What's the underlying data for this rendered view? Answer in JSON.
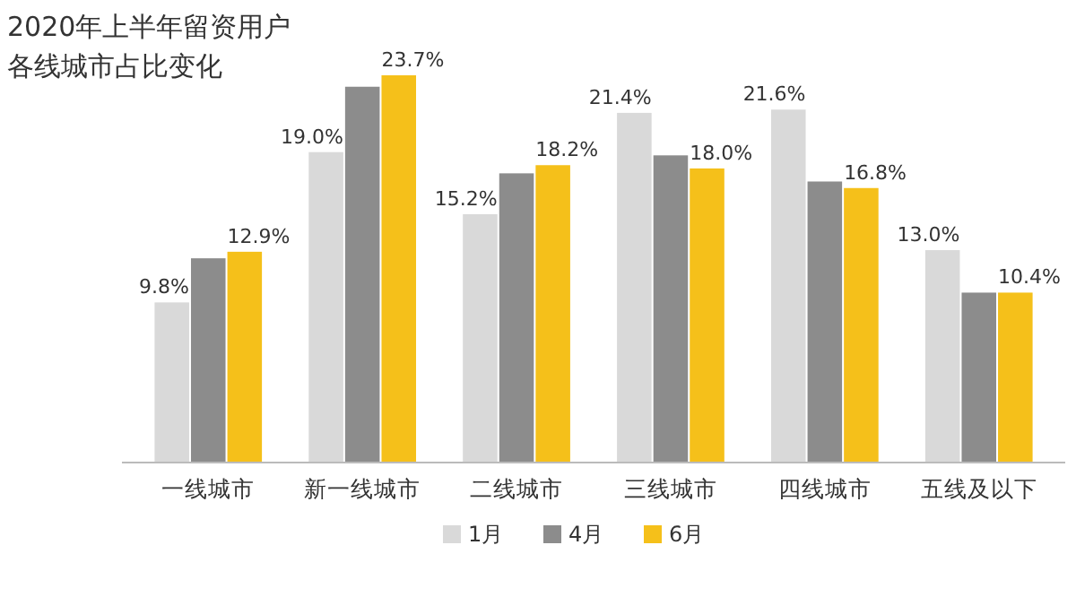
{
  "chart_data": {
    "type": "bar",
    "title": "2020年上半年留资用户",
    "subtitle": "各线城市占比变化",
    "categories": [
      "一线城市",
      "新一线城市",
      "二线城市",
      "三线城市",
      "四线城市",
      "五线及以下"
    ],
    "series": [
      {
        "name": "1月",
        "color": "#d9d9d9",
        "values": [
          9.8,
          19.0,
          15.2,
          21.4,
          21.6,
          13.0
        ],
        "value_labels": [
          "9.8%",
          "19.0%",
          "15.2%",
          "21.4%",
          "21.6%",
          "13.0%"
        ]
      },
      {
        "name": "4月",
        "color": "#8c8c8c",
        "values": [
          12.5,
          23.0,
          17.7,
          18.8,
          17.2,
          10.4
        ]
      },
      {
        "name": "6月",
        "color": "#f5c01a",
        "values": [
          12.9,
          23.7,
          18.2,
          18.0,
          16.8,
          10.4
        ],
        "value_labels": [
          "12.9%",
          "23.7%",
          "18.2%",
          "18.0%",
          "16.8%",
          "10.4%"
        ]
      }
    ],
    "grid": false,
    "legend": "bottom"
  }
}
